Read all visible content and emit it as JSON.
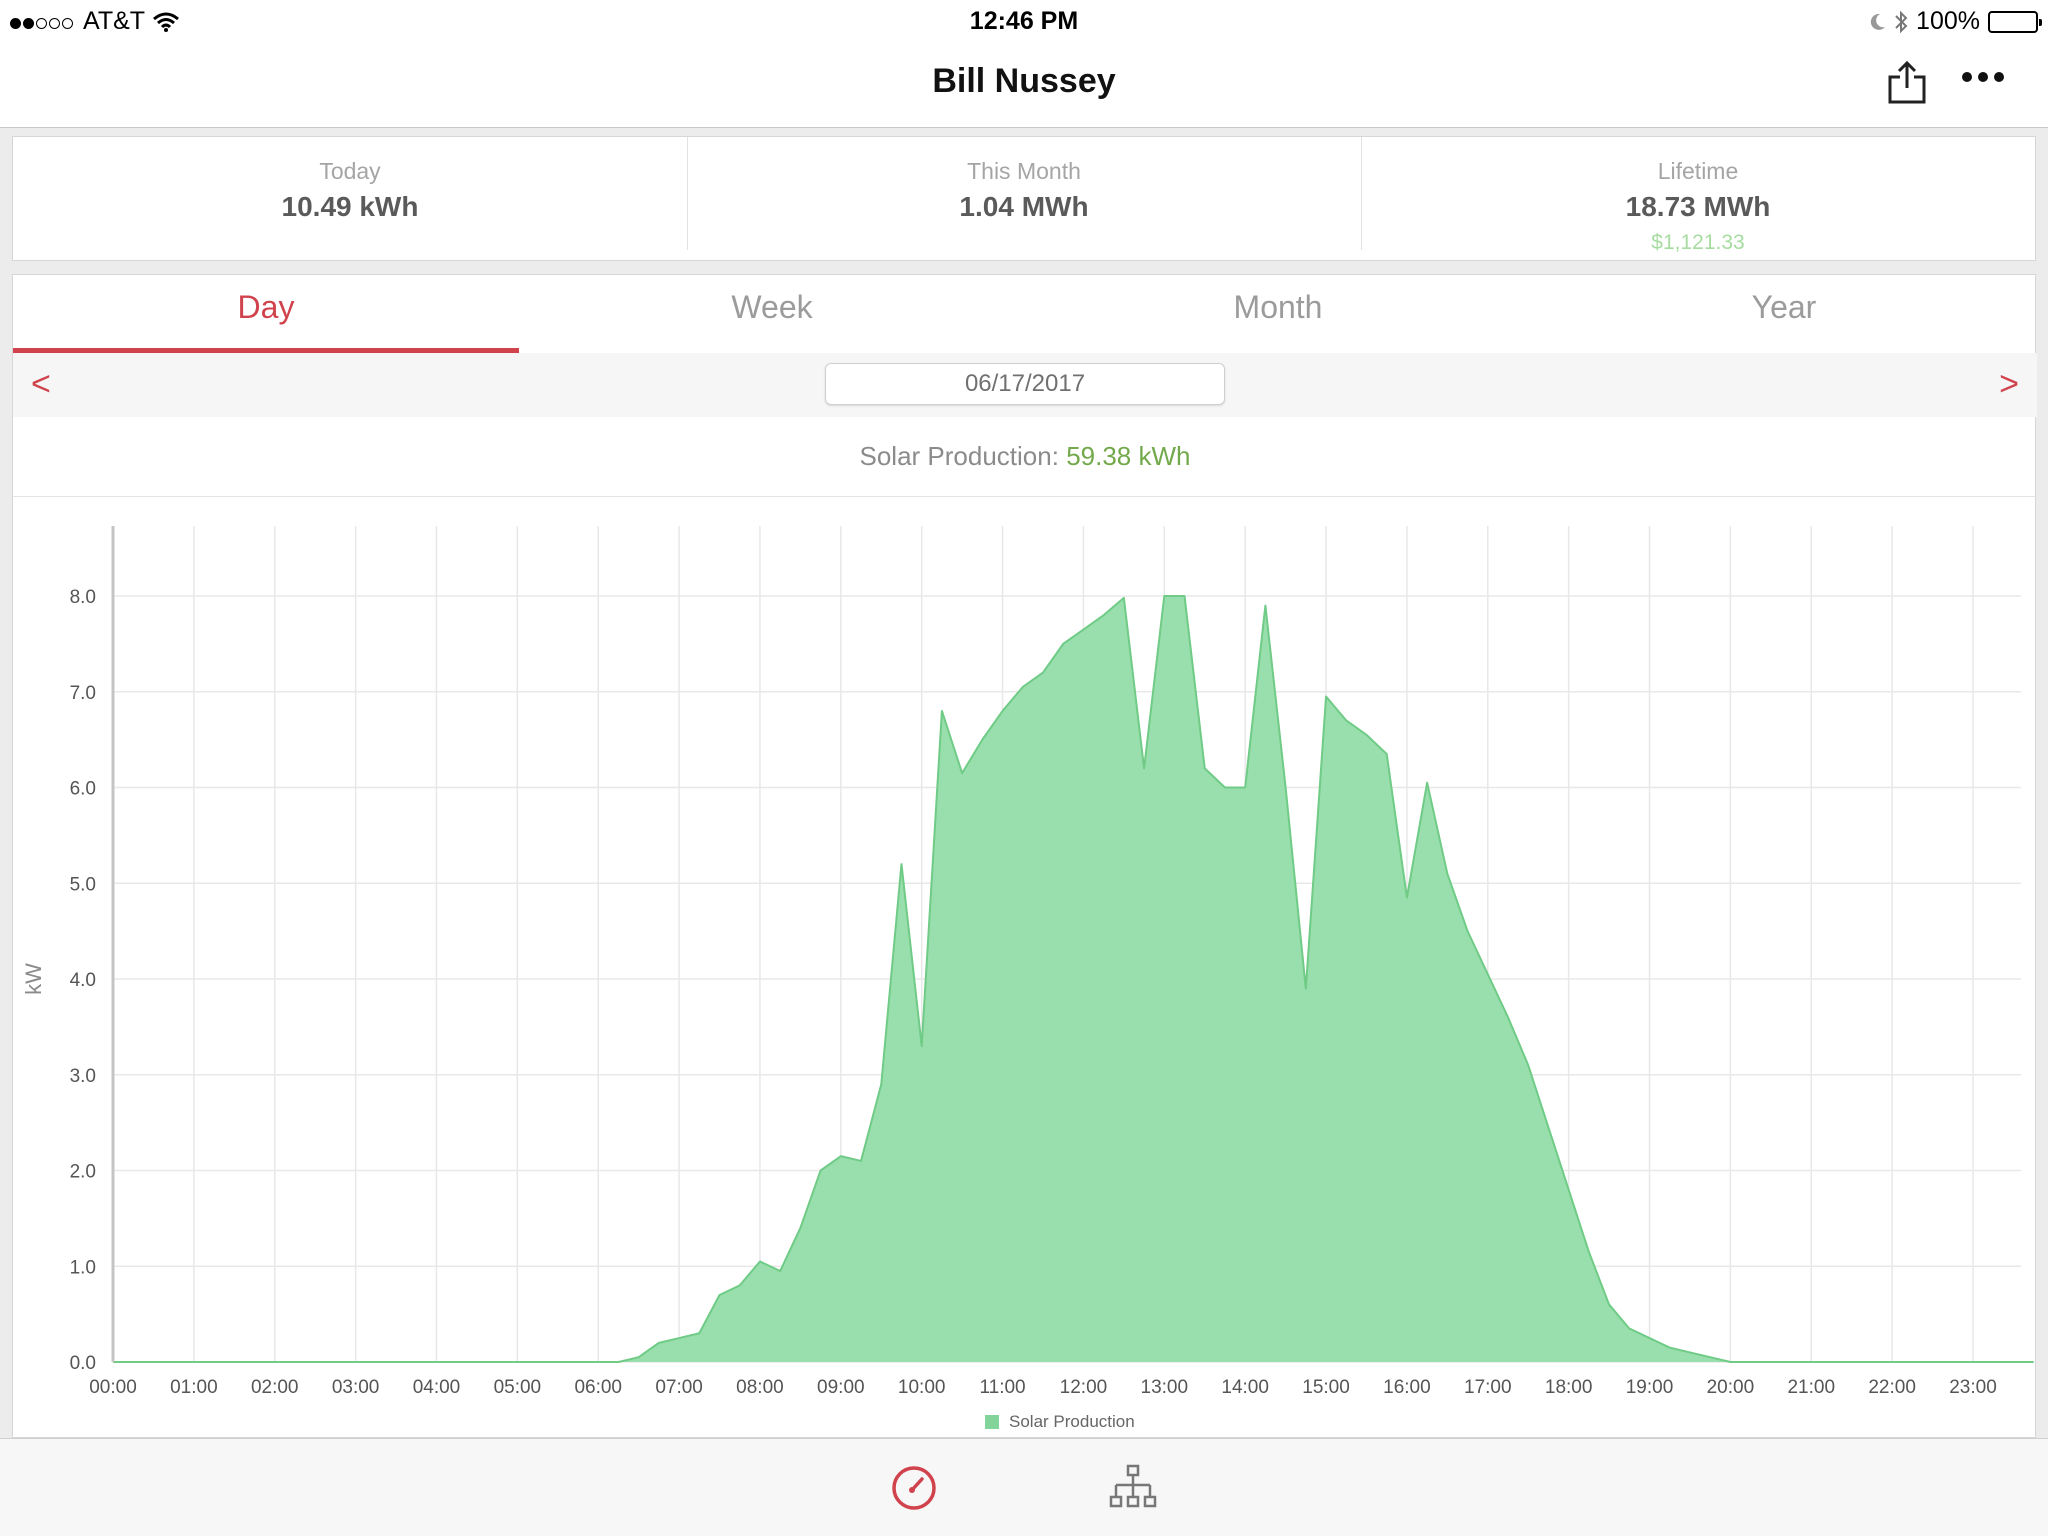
{
  "status": {
    "carrier": "AT&T",
    "time": "12:46 PM",
    "battery": "100%"
  },
  "nav": {
    "title": "Bill Nussey"
  },
  "summary": {
    "today_label": "Today",
    "today_value": "10.49 kWh",
    "month_label": "This Month",
    "month_value": "1.04 MWh",
    "lifetime_label": "Lifetime",
    "lifetime_value": "18.73 MWh",
    "lifetime_money": "$1,121.33"
  },
  "tabs": [
    "Day",
    "Week",
    "Month",
    "Year"
  ],
  "active_tab": "Day",
  "date_nav": {
    "prev": "<",
    "next": ">",
    "date": "06/17/2017"
  },
  "production": {
    "label": "Solar Production:",
    "value": "59.38 kWh"
  },
  "colors": {
    "accent": "#d0434d",
    "area_fill": "#99dfad",
    "area_line": "#6fcb86",
    "production_value": "#72a94b",
    "money": "#a7dca0"
  },
  "chart_data": {
    "type": "area",
    "ylabel": "kW",
    "ylim": [
      0,
      8.7
    ],
    "xlim": [
      0,
      23.75
    ],
    "y_ticks": [
      "0.0",
      "1.0",
      "2.0",
      "3.0",
      "4.0",
      "5.0",
      "6.0",
      "7.0",
      "8.0"
    ],
    "x_ticks": [
      "00:00",
      "01:00",
      "02:00",
      "03:00",
      "04:00",
      "05:00",
      "06:00",
      "07:00",
      "08:00",
      "09:00",
      "10:00",
      "11:00",
      "12:00",
      "13:00",
      "14:00",
      "15:00",
      "16:00",
      "17:00",
      "18:00",
      "19:00",
      "20:00",
      "21:00",
      "22:00",
      "23:00"
    ],
    "grid": true,
    "legend": "bottom-center",
    "series": [
      {
        "name": "Solar Production",
        "x": [
          0,
          6.25,
          6.5,
          6.75,
          7.0,
          7.25,
          7.5,
          7.75,
          8.0,
          8.25,
          8.5,
          8.75,
          9.0,
          9.25,
          9.5,
          9.75,
          10.0,
          10.25,
          10.5,
          10.75,
          11.0,
          11.25,
          11.5,
          11.75,
          12.0,
          12.25,
          12.5,
          12.75,
          13.0,
          13.25,
          13.5,
          13.75,
          14.0,
          14.25,
          14.5,
          14.75,
          15.0,
          15.25,
          15.5,
          15.75,
          16.0,
          16.25,
          16.5,
          16.75,
          17.0,
          17.25,
          17.5,
          17.75,
          18.0,
          18.25,
          18.5,
          18.75,
          19.0,
          19.25,
          19.5,
          19.75,
          20.0,
          20.25,
          20.5,
          20.75,
          21.0,
          23.75
        ],
        "y": [
          0.0,
          0.0,
          0.05,
          0.2,
          0.25,
          0.3,
          0.7,
          0.8,
          1.05,
          0.95,
          1.4,
          2.0,
          2.15,
          2.1,
          2.9,
          5.2,
          3.3,
          6.8,
          6.15,
          6.5,
          6.8,
          7.05,
          7.2,
          7.5,
          7.65,
          7.8,
          7.98,
          6.2,
          8.0,
          8.0,
          6.2,
          6.0,
          6.0,
          7.9,
          6.0,
          3.9,
          6.95,
          6.7,
          6.55,
          6.35,
          4.85,
          6.05,
          5.1,
          4.5,
          4.05,
          3.6,
          3.1,
          2.45,
          1.8,
          1.15,
          0.6,
          0.35,
          0.25,
          0.15,
          0.1,
          0.05,
          0.0,
          0.0,
          0.0,
          0.0,
          0.0,
          0.0
        ]
      }
    ]
  }
}
